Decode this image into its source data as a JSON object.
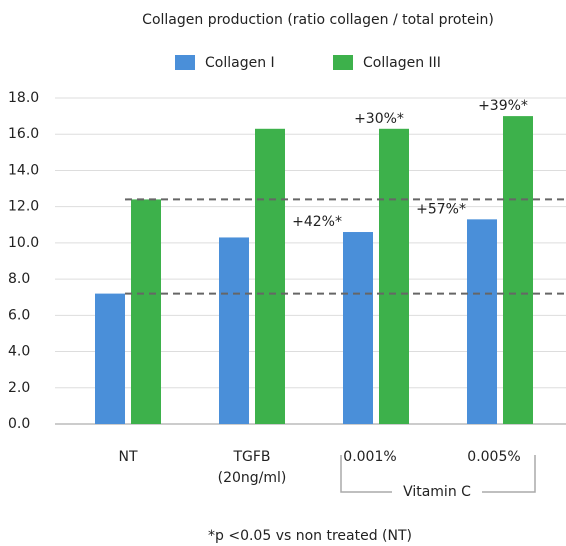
{
  "chart_data": {
    "type": "bar",
    "title": "Collagen production (ratio collagen / total protein)",
    "categories": [
      "NT",
      "TGFB\n(20ng/ml)",
      "0.001%",
      "0.005%"
    ],
    "series": [
      {
        "name": "Collagen I",
        "color": "#4a8fd9",
        "values": [
          7.2,
          10.3,
          10.6,
          11.3
        ]
      },
      {
        "name": "Collagen III",
        "color": "#3db14b",
        "values": [
          12.4,
          16.3,
          16.3,
          17.0
        ]
      }
    ],
    "ylim": [
      0,
      18
    ],
    "yticks": [
      {
        "value": 0,
        "label": "0.0"
      },
      {
        "value": 2,
        "label": "2.0"
      },
      {
        "value": 4,
        "label": "4.0"
      },
      {
        "value": 6,
        "label": "6.0"
      },
      {
        "value": 8,
        "label": "8.0"
      },
      {
        "value": 10,
        "label": "10.0"
      },
      {
        "value": 12,
        "label": "12.0"
      },
      {
        "value": 14,
        "label": "14.0"
      },
      {
        "value": 16,
        "label": "16.0"
      },
      {
        "value": 18,
        "label": "18.0"
      }
    ],
    "grid": true,
    "annotations": [
      "+42%*",
      "+30%*",
      "+57%*",
      "+39%*"
    ],
    "group_label": "Vitamin C",
    "footnote": "*p <0.05 vs non treated (NT)"
  }
}
